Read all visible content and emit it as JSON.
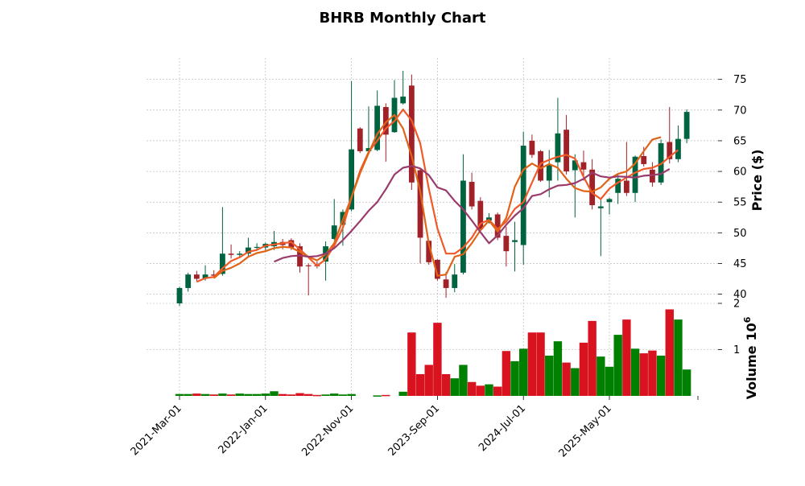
{
  "chart_data": {
    "type": "candlestick",
    "title": "BHRB Monthly Chart",
    "ylabel": "Price ($)",
    "volume_label": "Volume",
    "volume_exponent_label": "10",
    "volume_exponent": "6",
    "price_ylim": [
      38.5,
      78.5
    ],
    "price_yticks": [
      40,
      45,
      50,
      55,
      60,
      65,
      70,
      75
    ],
    "volume_ylim": [
      0,
      2
    ],
    "volume_yticks": [
      1,
      2
    ],
    "xticks": [
      {
        "label": "2021-Mar-01",
        "index": 0
      },
      {
        "label": "2022-Jan-01",
        "index": 10
      },
      {
        "label": "2022-Nov-01",
        "index": 20
      },
      {
        "label": "2023-Sep-01",
        "index": 30
      },
      {
        "label": "2024-Jul-01",
        "index": 40
      },
      {
        "label": "2025-May-01",
        "index": 50
      }
    ],
    "colors": {
      "up": "#006340",
      "down": "#a02128",
      "vol_up": "#008000",
      "vol_down": "#d8121e",
      "ma_fast": "#f05a28",
      "ma_mid": "#e06418",
      "ma_slow": "#9b3b6d"
    },
    "candles": [
      {
        "date": "2021-Mar-01",
        "open": 38.5,
        "high": 41.2,
        "low": 38.1,
        "close": 41.0,
        "volume": 0.04
      },
      {
        "date": "2021-Apr-01",
        "open": 41.0,
        "high": 43.5,
        "low": 40.4,
        "close": 43.2,
        "volume": 0.04
      },
      {
        "date": "2021-May-01",
        "open": 43.2,
        "high": 43.8,
        "low": 42.0,
        "close": 42.5,
        "volume": 0.05
      },
      {
        "date": "2021-Jun-01",
        "open": 42.5,
        "high": 44.7,
        "low": 42.2,
        "close": 43.2,
        "volume": 0.04
      },
      {
        "date": "2021-Jul-01",
        "open": 43.2,
        "high": 43.9,
        "low": 42.6,
        "close": 43.0,
        "volume": 0.03
      },
      {
        "date": "2021-Aug-01",
        "open": 43.3,
        "high": 54.2,
        "low": 43.0,
        "close": 46.6,
        "volume": 0.05
      },
      {
        "date": "2021-Sep-01",
        "open": 46.6,
        "high": 48.1,
        "low": 45.8,
        "close": 46.4,
        "volume": 0.03
      },
      {
        "date": "2021-Oct-01",
        "open": 46.4,
        "high": 47.0,
        "low": 46.0,
        "close": 46.6,
        "volume": 0.05
      },
      {
        "date": "2021-Nov-01",
        "open": 46.6,
        "high": 49.2,
        "low": 46.2,
        "close": 47.6,
        "volume": 0.04
      },
      {
        "date": "2021-Dec-01",
        "open": 47.6,
        "high": 48.3,
        "low": 47.1,
        "close": 47.7,
        "volume": 0.04
      },
      {
        "date": "2022-Jan-01",
        "open": 47.6,
        "high": 48.4,
        "low": 47.0,
        "close": 48.2,
        "volume": 0.05
      },
      {
        "date": "2022-Feb-01",
        "open": 47.8,
        "high": 50.3,
        "low": 47.2,
        "close": 48.5,
        "volume": 0.1
      },
      {
        "date": "2022-Mar-01",
        "open": 48.5,
        "high": 49.0,
        "low": 47.3,
        "close": 48.0,
        "volume": 0.04
      },
      {
        "date": "2022-Apr-01",
        "open": 48.8,
        "high": 49.1,
        "low": 47.2,
        "close": 47.6,
        "volume": 0.03
      },
      {
        "date": "2022-May-01",
        "open": 47.8,
        "high": 48.3,
        "low": 43.5,
        "close": 44.5,
        "volume": 0.06
      },
      {
        "date": "2022-Jun-01",
        "open": 44.7,
        "high": 45.0,
        "low": 39.8,
        "close": 44.6,
        "volume": 0.04
      },
      {
        "date": "2022-Jul-01",
        "open": 44.7,
        "high": 45.3,
        "low": 44.2,
        "close": 44.6,
        "volume": 0.02
      },
      {
        "date": "2022-Aug-01",
        "open": 45.3,
        "high": 48.6,
        "low": 42.2,
        "close": 47.8,
        "volume": 0.03
      },
      {
        "date": "2022-Sep-01",
        "open": 49.0,
        "high": 55.5,
        "low": 48.8,
        "close": 51.2,
        "volume": 0.05
      },
      {
        "date": "2022-Oct-01",
        "open": 51.3,
        "high": 53.8,
        "low": 47.9,
        "close": 53.4,
        "volume": 0.03
      },
      {
        "date": "2022-Nov-01",
        "open": 53.8,
        "high": 74.7,
        "low": 53.5,
        "close": 63.6,
        "volume": 0.04
      },
      {
        "date": "2022-Dec-01",
        "open": 67.0,
        "high": 67.2,
        "low": 63.0,
        "close": 63.3,
        "volume": null
      },
      {
        "date": "2023-Jan-01",
        "open": 63.3,
        "high": 70.6,
        "low": 63.2,
        "close": 63.8,
        "volume": null
      },
      {
        "date": "2023-Feb-01",
        "open": 63.5,
        "high": 73.2,
        "low": 63.3,
        "close": 70.7,
        "volume": 0.01
      },
      {
        "date": "2023-Mar-01",
        "open": 70.5,
        "high": 71.1,
        "low": 61.6,
        "close": 66.0,
        "volume": 0.02
      },
      {
        "date": "2023-Apr-01",
        "open": 66.4,
        "high": 74.9,
        "low": 66.3,
        "close": 72.0,
        "volume": null
      },
      {
        "date": "2023-May-01",
        "open": 71.1,
        "high": 76.4,
        "low": 70.9,
        "close": 72.2,
        "volume": 0.09
      },
      {
        "date": "2023-Jun-01",
        "open": 74.0,
        "high": 75.8,
        "low": 57.0,
        "close": 58.2,
        "volume": 1.37
      },
      {
        "date": "2023-Jul-01",
        "open": 60.2,
        "high": 60.4,
        "low": 45.0,
        "close": 49.2,
        "volume": 0.47
      },
      {
        "date": "2023-Aug-01",
        "open": 48.7,
        "high": 48.8,
        "low": 44.8,
        "close": 45.2,
        "volume": 0.67
      },
      {
        "date": "2023-Sep-01",
        "open": 45.6,
        "high": 45.7,
        "low": 42.2,
        "close": 42.5,
        "volume": 1.58
      },
      {
        "date": "2023-Oct-01",
        "open": 42.4,
        "high": 43.6,
        "low": 39.4,
        "close": 41.0,
        "volume": 0.47
      },
      {
        "date": "2023-Nov-01",
        "open": 41.0,
        "high": 44.9,
        "low": 40.3,
        "close": 43.2,
        "volume": 0.38
      },
      {
        "date": "2023-Dec-01",
        "open": 43.5,
        "high": 62.8,
        "low": 43.2,
        "close": 58.5,
        "volume": 0.67
      },
      {
        "date": "2024-Jan-01",
        "open": 58.3,
        "high": 59.8,
        "low": 53.8,
        "close": 54.3,
        "volume": 0.3
      },
      {
        "date": "2024-Feb-01",
        "open": 55.2,
        "high": 55.8,
        "low": 50.4,
        "close": 50.6,
        "volume": 0.22
      },
      {
        "date": "2024-Mar-01",
        "open": 52.0,
        "high": 53.2,
        "low": 51.5,
        "close": 52.5,
        "volume": 0.25
      },
      {
        "date": "2024-Apr-01",
        "open": 53.0,
        "high": 53.3,
        "low": 48.8,
        "close": 49.2,
        "volume": 0.2
      },
      {
        "date": "2024-May-01",
        "open": 49.5,
        "high": 51.0,
        "low": 44.5,
        "close": 47.0,
        "volume": 0.97
      },
      {
        "date": "2024-Jun-01",
        "open": 48.5,
        "high": 51.8,
        "low": 43.7,
        "close": 48.8,
        "volume": 0.75
      },
      {
        "date": "2024-Jul-01",
        "open": 48.0,
        "high": 66.5,
        "low": 44.8,
        "close": 64.2,
        "volume": 1.02
      },
      {
        "date": "2024-Aug-01",
        "open": 65.0,
        "high": 66.0,
        "low": 62.2,
        "close": 62.7,
        "volume": 1.37
      },
      {
        "date": "2024-Sep-01",
        "open": 63.3,
        "high": 63.5,
        "low": 58.3,
        "close": 58.5,
        "volume": 1.37
      },
      {
        "date": "2024-Oct-01",
        "open": 58.5,
        "high": 63.5,
        "low": 55.8,
        "close": 61.0,
        "volume": 0.87
      },
      {
        "date": "2024-Nov-01",
        "open": 61.5,
        "high": 72.0,
        "low": 58.5,
        "close": 66.2,
        "volume": 1.18
      },
      {
        "date": "2024-Dec-01",
        "open": 66.8,
        "high": 69.2,
        "low": 59.5,
        "close": 60.0,
        "volume": 0.72
      },
      {
        "date": "2025-Jan-01",
        "open": 60.2,
        "high": 62.8,
        "low": 52.5,
        "close": 61.8,
        "volume": 0.6
      },
      {
        "date": "2025-Feb-01",
        "open": 61.5,
        "high": 63.4,
        "low": 58.5,
        "close": 60.3,
        "volume": 1.15
      },
      {
        "date": "2025-Mar-01",
        "open": 60.3,
        "high": 62.0,
        "low": 53.8,
        "close": 54.5,
        "volume": 1.62
      },
      {
        "date": "2025-Apr-01",
        "open": 54.0,
        "high": 55.5,
        "low": 46.2,
        "close": 54.3,
        "volume": 0.85
      },
      {
        "date": "2025-May-01",
        "open": 55.0,
        "high": 55.7,
        "low": 53.0,
        "close": 55.5,
        "volume": 0.63
      },
      {
        "date": "2025-Jun-01",
        "open": 56.5,
        "high": 59.5,
        "low": 54.7,
        "close": 58.8,
        "volume": 1.32
      },
      {
        "date": "2025-Jul-01",
        "open": 58.5,
        "high": 64.8,
        "low": 56.0,
        "close": 56.5,
        "volume": 1.65
      },
      {
        "date": "2025-Aug-01",
        "open": 56.5,
        "high": 62.6,
        "low": 55.0,
        "close": 62.4,
        "volume": 1.02
      },
      {
        "date": "2025-Sep-01",
        "open": 62.5,
        "high": 64.0,
        "low": 60.8,
        "close": 61.2,
        "volume": 0.92
      },
      {
        "date": "2025-Oct-01",
        "open": 60.3,
        "high": 61.5,
        "low": 57.5,
        "close": 58.2,
        "volume": 0.98
      },
      {
        "date": "2025-Nov-01",
        "open": 58.2,
        "high": 65.2,
        "low": 57.8,
        "close": 64.6,
        "volume": 0.87
      },
      {
        "date": "2025-Dec-01",
        "open": 64.8,
        "high": 70.5,
        "low": 61.3,
        "close": 62.0,
        "volume": 1.87
      },
      {
        "date": "2026-Jan-01",
        "open": 62.0,
        "high": 67.5,
        "low": 61.5,
        "close": 65.3,
        "volume": 1.65
      },
      {
        "date": "2026-Feb-01",
        "open": 65.3,
        "high": 70.1,
        "low": 64.6,
        "close": 69.7,
        "volume": 0.57
      }
    ],
    "moving_averages": [
      {
        "key": "ma_fast",
        "start": 2,
        "values": [
          42.0,
          42.6,
          42.8,
          44.2,
          45.4,
          46.0,
          46.9,
          47.2,
          47.9,
          48.1,
          48.3,
          48.5,
          47.3,
          46.0,
          44.6,
          45.7,
          47.9,
          50.8,
          55.7,
          60.1,
          63.2,
          65.0,
          67.0,
          68.2,
          70.1,
          68.3,
          64.6,
          57.2,
          50.7,
          46.6,
          46.6,
          47.6,
          49.2,
          51.5,
          52.1,
          50.6,
          51.8,
          53.9,
          55.0,
          58.2,
          61.3,
          61.9,
          62.4,
          62.7,
          62.1,
          59.1,
          56.5,
          55.5,
          57.2,
          58.2,
          59.0,
          59.8,
          60.4,
          60.6,
          61.2,
          62.4,
          63.5
        ]
      },
      {
        "key": "ma_mid",
        "start": 4,
        "values": [
          42.6,
          43.8,
          44.3,
          45.0,
          46.1,
          46.7,
          47.0,
          47.5,
          47.7,
          47.6,
          46.9,
          46.1,
          45.5,
          46.5,
          48.3,
          52.1,
          55.8,
          59.7,
          63.0,
          66.1,
          68.0,
          69.2,
          67.0,
          62.5,
          56.8,
          48.2,
          43.0,
          43.2,
          46.1,
          46.5,
          48.3,
          50.4,
          52.0,
          50.2,
          52.4,
          57.5,
          60.3,
          61.3,
          60.5,
          61.2,
          60.6,
          58.8,
          57.3,
          56.8,
          56.7,
          57.4,
          58.8,
          59.6,
          60.0,
          61.3,
          63.3,
          65.2,
          65.6
        ]
      },
      {
        "key": "ma_slow",
        "start": 11,
        "values": [
          45.3,
          45.9,
          46.2,
          46.3,
          46.1,
          46.2,
          46.6,
          47.5,
          48.8,
          50.3,
          51.9,
          53.6,
          55.0,
          57.1,
          59.5,
          60.6,
          60.9,
          60.5,
          59.4,
          57.4,
          56.9,
          55.2,
          53.8,
          52.0,
          50.1,
          48.3,
          49.6,
          51.3,
          52.8,
          54.0,
          56.0,
          56.3,
          57.1,
          57.7,
          57.8,
          58.1,
          58.8,
          59.8,
          59.2,
          59.0,
          59.2,
          59.1,
          59.0,
          59.3,
          59.4,
          59.6,
          60.4
        ]
      }
    ]
  }
}
